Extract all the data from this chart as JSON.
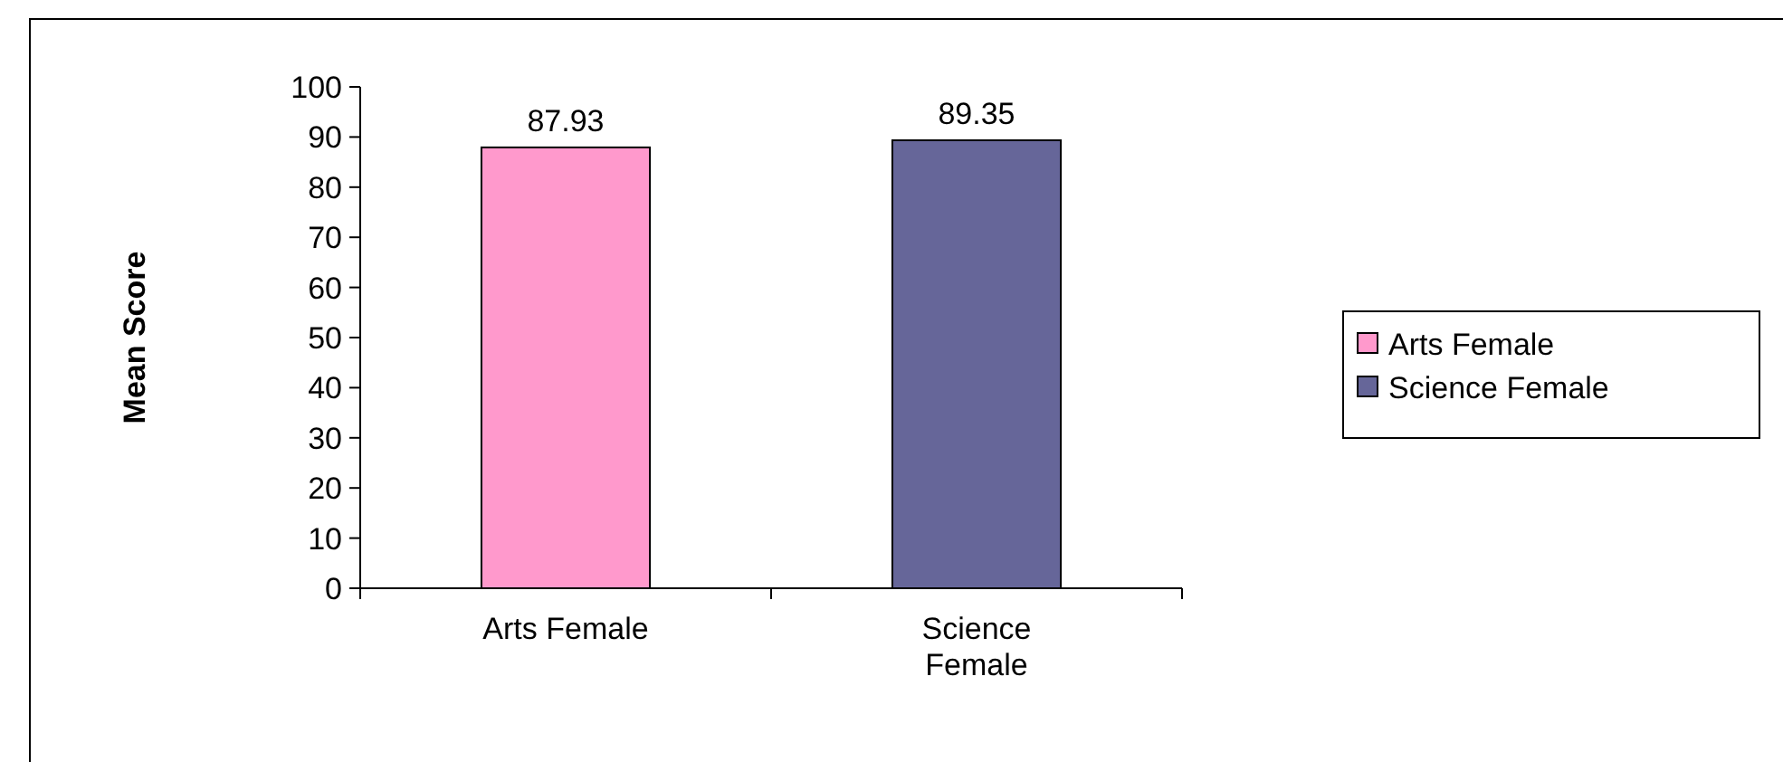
{
  "chart_data": {
    "type": "bar",
    "ylabel": "Mean Score",
    "categories": [
      "Arts Female",
      "Science Female"
    ],
    "series": [
      {
        "name": "Arts Female",
        "color": "#ff99cc",
        "values": [
          87.93,
          null
        ]
      },
      {
        "name": "Science Female",
        "color": "#666699",
        "values": [
          null,
          89.35
        ]
      }
    ],
    "data_labels": true,
    "ylim": [
      0,
      100
    ],
    "yticks": [
      0,
      10,
      20,
      30,
      40,
      50,
      60,
      70,
      80,
      90,
      100
    ],
    "legend": "right"
  }
}
